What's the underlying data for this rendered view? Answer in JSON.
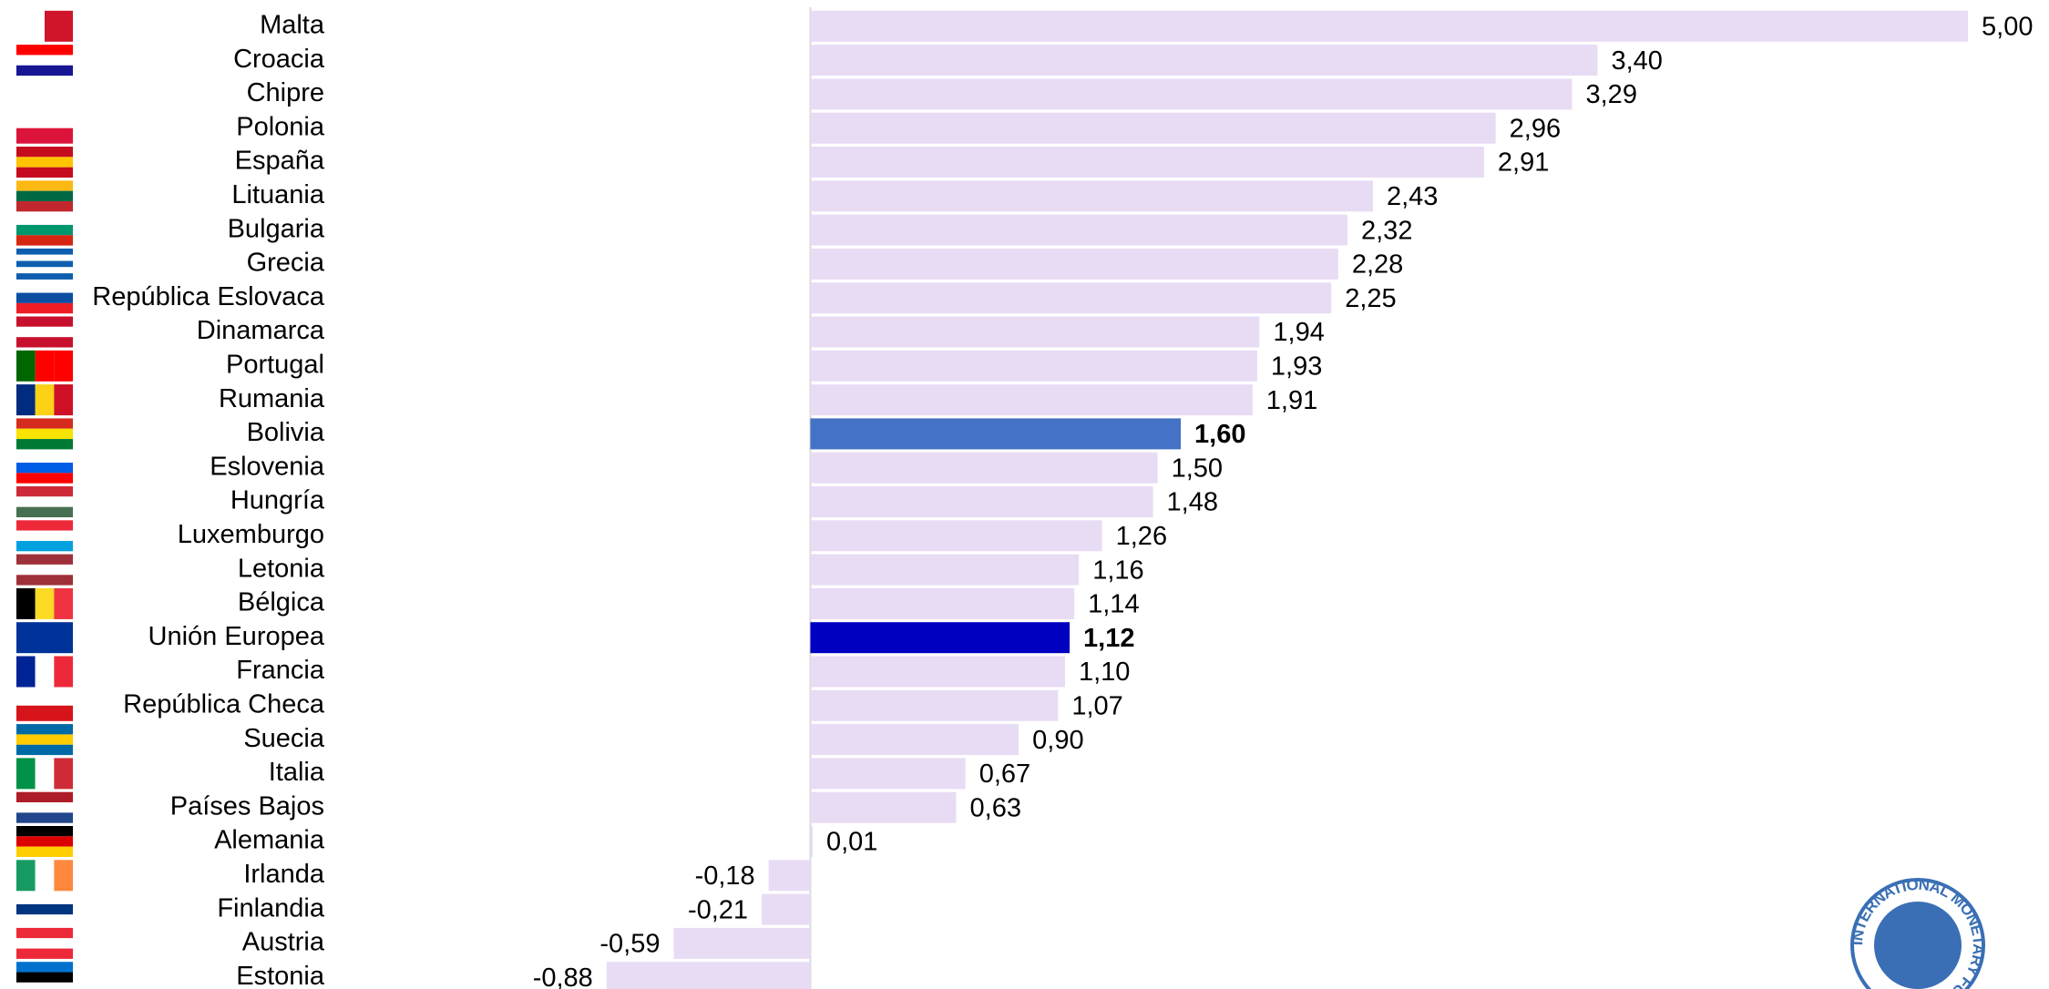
{
  "chart_data": {
    "type": "bar",
    "orientation": "horizontal",
    "categories": [
      "Malta",
      "Croacia",
      "Chipre",
      "Polonia",
      "España",
      "Lituania",
      "Bulgaria",
      "Grecia",
      "República Eslovaca",
      "Dinamarca",
      "Portugal",
      "Rumania",
      "Bolivia",
      "Eslovenia",
      "Hungría",
      "Luxemburgo",
      "Letonia",
      "Bélgica",
      "Unión Europea",
      "Francia",
      "República Checa",
      "Suecia",
      "Italia",
      "Países Bajos",
      "Alemania",
      "Irlanda",
      "Finlandia",
      "Austria",
      "Estonia"
    ],
    "values": [
      5.0,
      3.4,
      3.29,
      2.96,
      2.91,
      2.43,
      2.32,
      2.28,
      2.25,
      1.94,
      1.93,
      1.91,
      1.6,
      1.5,
      1.48,
      1.26,
      1.16,
      1.14,
      1.12,
      1.1,
      1.07,
      0.9,
      0.67,
      0.63,
      0.01,
      -0.18,
      -0.21,
      -0.59,
      -0.88
    ],
    "value_labels": [
      "5,00",
      "3,40",
      "3,29",
      "2,96",
      "2,91",
      "2,43",
      "2,32",
      "2,28",
      "2,25",
      "1,94",
      "1,93",
      "1,91",
      "1,60",
      "1,50",
      "1,48",
      "1,26",
      "1,16",
      "1,14",
      "1,12",
      "1,10",
      "1,07",
      "0,90",
      "0,67",
      "0,63",
      "0,01",
      "-0,18",
      "-0,21",
      "-0,59",
      "-0,88"
    ],
    "color": "#e8dcf4",
    "colors": [
      "#e8dcf4",
      "#e8dcf4",
      "#e8dcf4",
      "#e8dcf4",
      "#e8dcf4",
      "#e8dcf4",
      "#e8dcf4",
      "#e8dcf4",
      "#e8dcf4",
      "#e8dcf4",
      "#e8dcf4",
      "#e8dcf4",
      "#4472c4",
      "#e8dcf4",
      "#e8dcf4",
      "#e8dcf4",
      "#e8dcf4",
      "#e8dcf4",
      "#0000c0",
      "#e8dcf4",
      "#e8dcf4",
      "#e8dcf4",
      "#e8dcf4",
      "#e8dcf4",
      "#e8dcf4",
      "#e8dcf4",
      "#e8dcf4",
      "#e8dcf4",
      "#e8dcf4"
    ],
    "xlim": [
      -3.5,
      5.35
    ],
    "logo": "INTERNATIONAL MONETARY FUND"
  }
}
